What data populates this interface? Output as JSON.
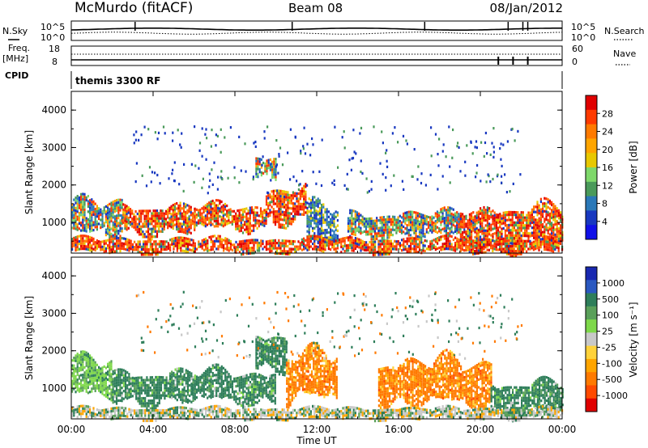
{
  "header": {
    "station": "McMurdo (fitACF)",
    "beam": "Beam 08",
    "date": "08/Jan/2012"
  },
  "summary": {
    "nsky_label": "N.Sky",
    "nsearch_label": "N.Search",
    "freq_label_1": "Freq.",
    "freq_label_2": "[MHz]",
    "nave_label": "Nave",
    "cpid_label": "CPID",
    "cpid_value": "themis 3300 RF",
    "noise_ticks_left": [
      "10^5",
      "10^0"
    ],
    "noise_ticks_right": [
      "10^5",
      "10^0"
    ],
    "freq_ticks": [
      "18",
      "8"
    ],
    "nave_ticks": [
      "60",
      "0"
    ]
  },
  "colorbars": {
    "power": {
      "label": "Power [dB]",
      "ticks": [
        "28",
        "24",
        "20",
        "16",
        "12",
        "8",
        "4"
      ],
      "colors": [
        "#e00000",
        "#ff3a00",
        "#ff7a00",
        "#ffa500",
        "#e8c800",
        "#7ed86a",
        "#4a9a5a",
        "#2a78b8",
        "#1838c0",
        "#1010e8"
      ]
    },
    "velocity": {
      "label": "Velocity [m s⁻¹]",
      "ticks": [
        "1000",
        "500",
        "100",
        "25",
        "-25",
        "-100",
        "-500",
        "-1000"
      ],
      "colors": [
        "#1828b0",
        "#2a58c0",
        "#2e7e5a",
        "#5aa05a",
        "#7ed84a",
        "#c8c8c8",
        "#ffd23a",
        "#ffa500",
        "#ff7a00",
        "#ff4a00",
        "#e00000"
      ]
    }
  },
  "axes": {
    "ylabel": "Slant Range [km]",
    "xlabel": "Time UT",
    "y_ticks": [
      "4000",
      "3000",
      "2000",
      "1000"
    ],
    "x_ticks": [
      "00:00",
      "04:00",
      "08:00",
      "12:00",
      "16:00",
      "20:00",
      "00:00"
    ]
  },
  "chart_data": {
    "type": "heatmap",
    "x_range_hours": [
      0,
      24
    ],
    "y_range_km": [
      180,
      4500
    ],
    "panels": [
      {
        "name": "Power [dB]",
        "ylim": [
          180,
          4500
        ],
        "regions": [
          {
            "t": [
              0.0,
              2.5
            ],
            "km": [
              600,
              1600
            ],
            "level": "mixed"
          },
          {
            "t": [
              2.5,
              6.0
            ],
            "km": [
              700,
              1500
            ],
            "level": "strong"
          },
          {
            "t": [
              6.0,
              9.5
            ],
            "km": [
              800,
              1500
            ],
            "level": "strong"
          },
          {
            "t": [
              9.5,
              11.5
            ],
            "km": [
              1000,
              2000
            ],
            "level": "strong"
          },
          {
            "t": [
              9.0,
              10.0
            ],
            "km": [
              2200,
              2800
            ],
            "level": "mixed"
          },
          {
            "t": [
              11.5,
              13.0
            ],
            "km": [
              300,
              1500
            ],
            "level": "weak"
          },
          {
            "t": [
              13.5,
              19.0
            ],
            "km": [
              600,
              1300
            ],
            "level": "mixed"
          },
          {
            "t": [
              19.0,
              24.0
            ],
            "km": [
              300,
              1500
            ],
            "level": "strong"
          },
          {
            "t": [
              0.0,
              24.0
            ],
            "km": [
              200,
              600
            ],
            "level": "strong"
          }
        ]
      },
      {
        "name": "Velocity [m s⁻¹]",
        "ylim": [
          180,
          4500
        ],
        "regions": [
          {
            "t": [
              0.0,
              2.0
            ],
            "km": [
              700,
              1800
            ],
            "velocity": 100
          },
          {
            "t": [
              2.0,
              10.0
            ],
            "km": [
              600,
              1500
            ],
            "velocity": 300
          },
          {
            "t": [
              9.0,
              10.5
            ],
            "km": [
              1500,
              2500
            ],
            "velocity": 300
          },
          {
            "t": [
              10.5,
              13.0
            ],
            "km": [
              600,
              2000
            ],
            "velocity": -150
          },
          {
            "t": [
              15.0,
              20.5
            ],
            "km": [
              500,
              1800
            ],
            "velocity": -150
          },
          {
            "t": [
              20.5,
              24.0
            ],
            "km": [
              300,
              1200
            ],
            "velocity": 300
          },
          {
            "t": [
              0.0,
              24.0
            ],
            "km": [
              200,
              500
            ],
            "velocity": 0
          }
        ]
      }
    ]
  }
}
